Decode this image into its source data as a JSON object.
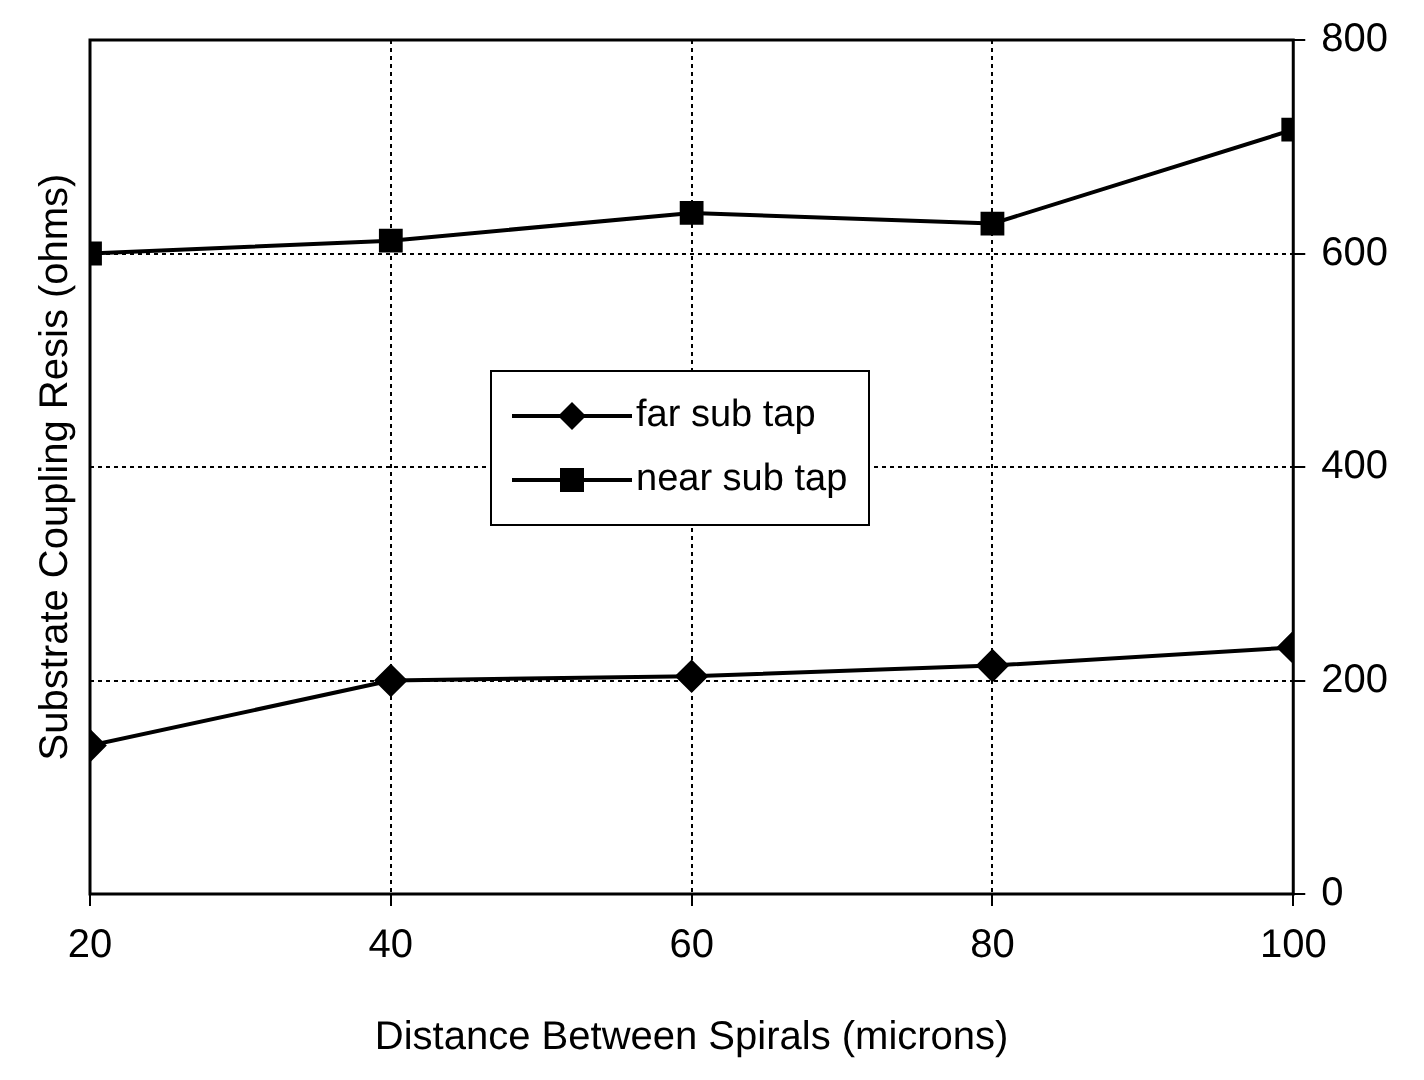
{
  "chart_data": {
    "type": "line",
    "xlabel": "Distance Between Spirals (microns)",
    "ylabel": "Substrate Coupling Resis (ohms)",
    "x": [
      20,
      40,
      60,
      80,
      100
    ],
    "series": [
      {
        "name": "far sub tap",
        "color": "#000000",
        "marker": "diamond",
        "values": [
          139,
          200,
          204,
          214,
          231
        ]
      },
      {
        "name": "near sub tap",
        "color": "#000000",
        "marker": "square",
        "values": [
          600,
          612,
          638,
          628,
          716
        ]
      }
    ],
    "xlim": [
      20,
      100
    ],
    "xticks": [
      20,
      40,
      60,
      80,
      100
    ],
    "ylim": [
      0,
      800
    ],
    "yticks": [
      0,
      200,
      400,
      600,
      800
    ],
    "grid": true,
    "legend": "center",
    "line_style": "solid"
  }
}
